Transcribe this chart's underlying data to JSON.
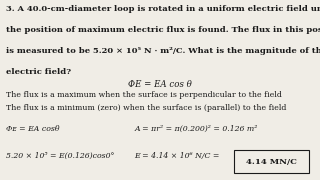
{
  "bg_color": "#f0ede6",
  "title_text_lines": [
    "3. A 40.0-cm-diameter loop is rotated in a uniform electric field until",
    "the position of maximum electric flux is found. The flux in this position",
    "is measured to be 5.20 × 10⁵ N · m²/C. What is the magnitude of the",
    "electric field?"
  ],
  "formula_center": "ΦE = EA cos θ",
  "line1": "The flux is a maximum when the surface is perpendicular to the field",
  "line2": "The flux is a minimum (zero) when the surface is (parallel) to the field",
  "eq1_left": "Φᴇ = EA cosθ",
  "eq1_right": "A = πr² = π(0.200)² = 0.126 m²",
  "eq2_left": "5.20 × 10⁵ = E(0.126)cos0°",
  "eq2_right": "E = 4.14 × 10⁶ N/C = ",
  "box_text": "4.14 MN/C",
  "text_color": "#1a1a1a",
  "box_bg": "#f0ede6",
  "box_edge": "#1a1a1a",
  "title_fontsize": 6.0,
  "body_fontsize": 5.6,
  "formula_fontsize": 6.2,
  "eq_fontsize": 5.6
}
